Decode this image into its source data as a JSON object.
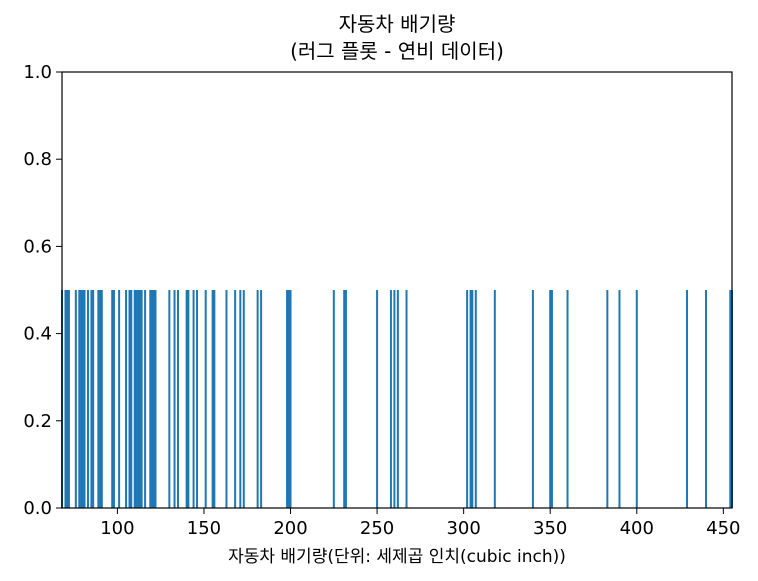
{
  "chart_data": {
    "type": "rug",
    "title": "자동차 배기량",
    "subtitle": "(러그 플롯 - 연비 데이터)",
    "xlabel": "자동차 배기량(단위: 세제곱 인치(cubic inch))",
    "ylabel": "",
    "xlim": [
      68,
      455
    ],
    "ylim": [
      0,
      1
    ],
    "x_ticks": [
      100,
      150,
      200,
      250,
      300,
      350,
      400,
      450
    ],
    "y_ticks": [
      0.0,
      0.2,
      0.4,
      0.6,
      0.8,
      1.0
    ],
    "x_tick_labels": [
      "100",
      "150",
      "200",
      "250",
      "300",
      "350",
      "400",
      "450"
    ],
    "y_tick_labels": [
      "0.0",
      "0.2",
      "0.4",
      "0.6",
      "0.8",
      "1.0"
    ],
    "rug_height": 0.5,
    "rug_color": "#1f77b4",
    "grid": false,
    "values": [
      68,
      70,
      71,
      72,
      76,
      78,
      79,
      80,
      81,
      83,
      85,
      86,
      89,
      90,
      91,
      97,
      98,
      101,
      105,
      107,
      108,
      110,
      111,
      112,
      113,
      114,
      116,
      119,
      120,
      121,
      122,
      130,
      133,
      135,
      140,
      141,
      144,
      146,
      151,
      155,
      156,
      163,
      168,
      171,
      173,
      181,
      183,
      198,
      199,
      200,
      225,
      231,
      232,
      250,
      258,
      260,
      262,
      267,
      302,
      304,
      305,
      307,
      318,
      340,
      350,
      351,
      360,
      383,
      390,
      400,
      429,
      440,
      454,
      455
    ]
  }
}
